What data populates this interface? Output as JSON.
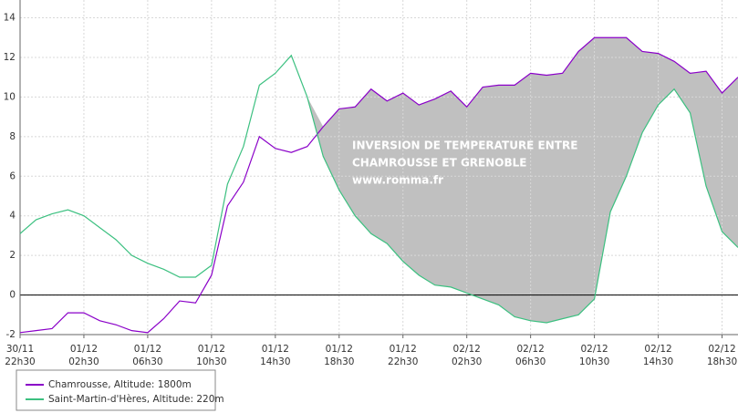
{
  "chart_data": {
    "type": "line",
    "annotation": [
      "INVERSION DE TEMPERATURE ENTRE",
      "CHAMROUSSE ET GRENOBLE",
      "www.romma.fr"
    ],
    "x": [
      "30/11 22h30",
      "30/11 23h30",
      "01/12 00h30",
      "01/12 01h30",
      "01/12 02h30",
      "01/12 03h30",
      "01/12 04h30",
      "01/12 05h30",
      "01/12 06h30",
      "01/12 07h30",
      "01/12 08h30",
      "01/12 09h30",
      "01/12 10h30",
      "01/12 11h30",
      "01/12 12h30",
      "01/12 13h30",
      "01/12 14h30",
      "01/12 15h30",
      "01/12 16h30",
      "01/12 17h30",
      "01/12 18h30",
      "01/12 19h30",
      "01/12 20h30",
      "01/12 21h30",
      "01/12 22h30",
      "01/12 23h30",
      "02/12 00h30",
      "02/12 01h30",
      "02/12 02h30",
      "02/12 03h30",
      "02/12 04h30",
      "02/12 05h30",
      "02/12 06h30",
      "02/12 07h30",
      "02/12 08h30",
      "02/12 09h30",
      "02/12 10h30",
      "02/12 11h30",
      "02/12 12h30",
      "02/12 13h30",
      "02/12 14h30",
      "02/12 15h30",
      "02/12 16h30",
      "02/12 17h30",
      "02/12 18h30",
      "02/12 19h30"
    ],
    "series": [
      {
        "name": "Chamrousse, Altitude: 1800m",
        "color": "#8a00c8",
        "values": [
          -1.9,
          -1.8,
          -1.7,
          -0.9,
          -0.9,
          -1.3,
          -1.5,
          -1.8,
          -1.9,
          -1.2,
          -0.3,
          -0.4,
          1.0,
          4.5,
          5.7,
          8.0,
          7.4,
          7.2,
          7.5,
          8.5,
          9.4,
          9.5,
          10.4,
          9.8,
          10.2,
          9.6,
          9.9,
          10.3,
          9.5,
          10.5,
          10.6,
          10.6,
          11.2,
          11.1,
          11.2,
          12.3,
          13.0,
          13.0,
          13.0,
          12.3,
          12.2,
          11.8,
          11.2,
          11.3,
          10.2,
          11.0
        ]
      },
      {
        "name": "Saint-Martin-d'Hères, Altitude: 220m",
        "color": "#3cc080",
        "values": [
          3.1,
          3.8,
          4.1,
          4.3,
          4.0,
          3.4,
          2.8,
          2.0,
          1.6,
          1.3,
          0.9,
          0.9,
          1.5,
          5.6,
          7.5,
          10.6,
          11.2,
          12.1,
          10.0,
          7.0,
          5.3,
          4.0,
          3.1,
          2.6,
          1.7,
          1.0,
          0.5,
          0.4,
          0.1,
          -0.2,
          -0.5,
          -1.1,
          -1.3,
          -1.4,
          -1.2,
          -1.0,
          -0.2,
          4.2,
          6.0,
          8.2,
          9.6,
          10.4,
          9.2,
          5.5,
          3.2,
          2.4
        ]
      }
    ],
    "fill_color": "#c0c0c0",
    "xlim": [
      "30/11 22h30",
      "02/12 19h30"
    ],
    "xticks": [
      "30/11 22h30",
      "01/12 02h30",
      "01/12 06h30",
      "01/12 10h30",
      "01/12 14h30",
      "01/12 18h30",
      "01/12 22h30",
      "02/12 02h30",
      "02/12 06h30",
      "02/12 10h30",
      "02/12 14h30",
      "02/12 18h30"
    ],
    "ylim": [
      -2,
      14.9
    ],
    "yticks": [
      -2,
      0,
      2,
      4,
      6,
      8,
      10,
      12,
      14
    ],
    "grid": true
  }
}
